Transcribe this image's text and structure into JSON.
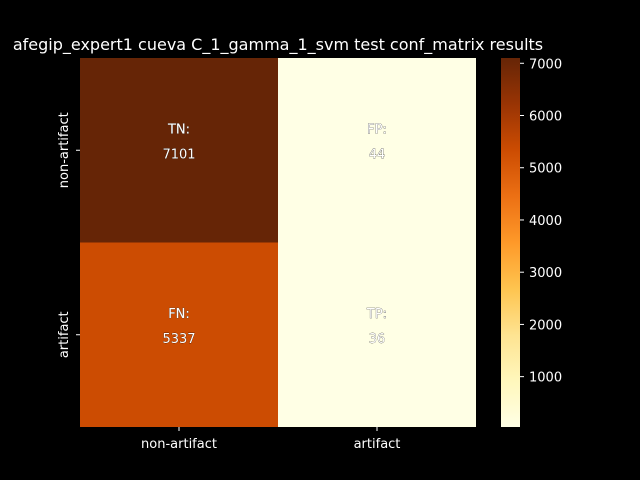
{
  "chart_data": {
    "type": "heatmap",
    "title": "afegip_expert1 cueva C_1_gamma_1_svm test conf_matrix results",
    "row_labels": [
      "non-artifact",
      "artifact"
    ],
    "col_labels": [
      "non-artifact",
      "artifact"
    ],
    "cells": [
      [
        {
          "name": "TN:",
          "value": 7101
        },
        {
          "name": "FP:",
          "value": 44
        }
      ],
      [
        {
          "name": "FN:",
          "value": 5337
        },
        {
          "name": "TP:",
          "value": 36
        }
      ]
    ],
    "colorbar": {
      "ticks": [
        1000,
        2000,
        3000,
        4000,
        5000,
        6000,
        7000
      ],
      "min": 36,
      "max": 7101
    },
    "colormap": [
      "#ffffe5",
      "#fff7bc",
      "#fee391",
      "#fec44f",
      "#fe9929",
      "#ec7014",
      "#cc4c02",
      "#993404",
      "#662506"
    ],
    "background": "#000000",
    "text_color": "#ffffff"
  }
}
